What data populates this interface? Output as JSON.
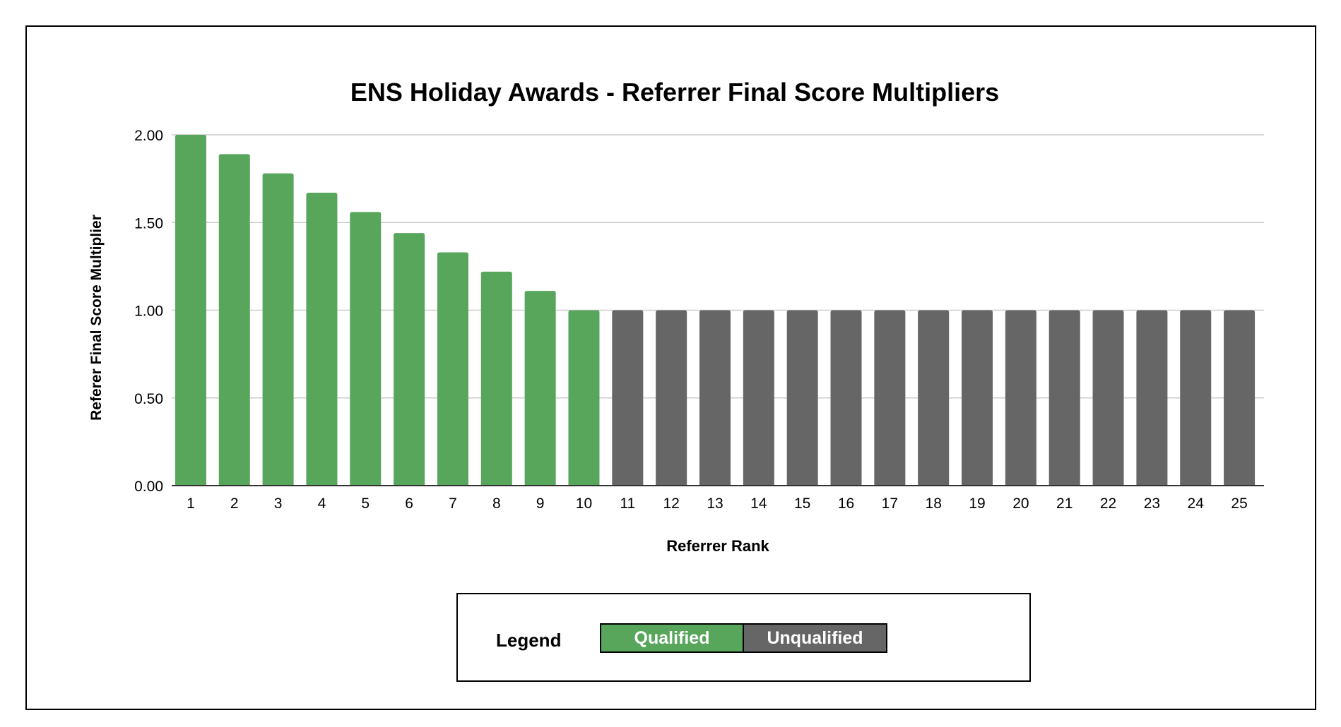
{
  "chart_data": {
    "type": "bar",
    "title": "ENS Holiday Awards - Referrer Final Score Multipliers",
    "xlabel": "Referrer Rank",
    "ylabel": "Referer Final Score Multiplier",
    "categories": [
      "1",
      "2",
      "3",
      "4",
      "5",
      "6",
      "7",
      "8",
      "9",
      "10",
      "11",
      "12",
      "13",
      "14",
      "15",
      "16",
      "17",
      "18",
      "19",
      "20",
      "21",
      "22",
      "23",
      "24",
      "25"
    ],
    "values": [
      2.0,
      1.89,
      1.78,
      1.67,
      1.56,
      1.44,
      1.33,
      1.22,
      1.11,
      1.0,
      1.0,
      1.0,
      1.0,
      1.0,
      1.0,
      1.0,
      1.0,
      1.0,
      1.0,
      1.0,
      1.0,
      1.0,
      1.0,
      1.0,
      1.0
    ],
    "status": [
      "Qualified",
      "Qualified",
      "Qualified",
      "Qualified",
      "Qualified",
      "Qualified",
      "Qualified",
      "Qualified",
      "Qualified",
      "Qualified",
      "Unqualified",
      "Unqualified",
      "Unqualified",
      "Unqualified",
      "Unqualified",
      "Unqualified",
      "Unqualified",
      "Unqualified",
      "Unqualified",
      "Unqualified",
      "Unqualified",
      "Unqualified",
      "Unqualified",
      "Unqualified",
      "Unqualified"
    ],
    "ylim": [
      0,
      2
    ],
    "yticks": [
      "0.00",
      "0.50",
      "1.00",
      "1.50",
      "2.00"
    ],
    "grid": true,
    "legend_placement": "bottom"
  },
  "legend": {
    "label": "Legend",
    "items": [
      {
        "name": "Qualified",
        "color": "#57a65b"
      },
      {
        "name": "Unqualified",
        "color": "#666666"
      }
    ]
  }
}
